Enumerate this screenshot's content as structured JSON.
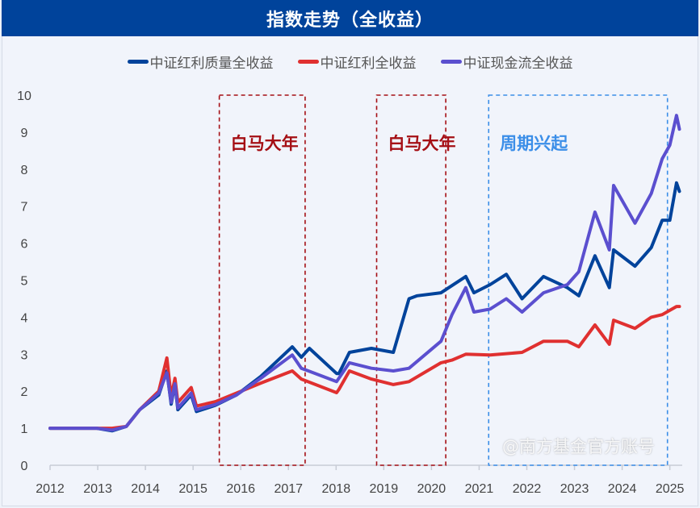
{
  "title": "指数走势（全收益）",
  "watermark": "@南方基金官方账号",
  "colors": {
    "title_bg": "#00439b",
    "background": "#f1f4fb",
    "era_red": "#a50f15",
    "era_blue": "#3b8ee8"
  },
  "chart_data": {
    "type": "line",
    "title": "指数走势（全收益）",
    "xlabel": "",
    "ylabel": "",
    "xlim": [
      2012,
      2025.2
    ],
    "ylim": [
      0,
      10
    ],
    "x_ticks": [
      "2012",
      "2013",
      "2014",
      "2015",
      "2016",
      "2017",
      "2018",
      "2019",
      "2020",
      "2021",
      "2022",
      "2023",
      "2024",
      "2025"
    ],
    "y_ticks": [
      "0",
      "1",
      "2",
      "3",
      "4",
      "5",
      "6",
      "7",
      "8",
      "9",
      "10"
    ],
    "grid": false,
    "legend": "top",
    "series": [
      {
        "name": "中证红利质量全收益",
        "color": "#00439b",
        "x": [
          2012.0,
          2012.98,
          2013.3,
          2013.6,
          2013.88,
          2014.28,
          2014.45,
          2014.54,
          2014.62,
          2014.68,
          2014.96,
          2015.07,
          2015.47,
          2015.91,
          2016.42,
          2017.08,
          2017.27,
          2017.44,
          2018.01,
          2018.06,
          2018.28,
          2018.74,
          2019.2,
          2019.53,
          2019.7,
          2020.2,
          2020.72,
          2020.89,
          2021.23,
          2021.57,
          2021.9,
          2022.35,
          2022.85,
          2023.09,
          2023.43,
          2023.73,
          2023.82,
          2024.27,
          2024.61,
          2024.84,
          2025.0,
          2025.14,
          2025.2
        ],
        "y": [
          1.0,
          1.0,
          0.93,
          1.05,
          1.5,
          1.9,
          2.55,
          1.65,
          2.2,
          1.5,
          1.9,
          1.45,
          1.62,
          1.9,
          2.4,
          3.2,
          2.92,
          3.16,
          2.48,
          2.48,
          3.05,
          3.16,
          3.05,
          4.5,
          4.58,
          4.66,
          5.1,
          4.66,
          4.88,
          5.16,
          4.5,
          5.1,
          4.8,
          4.58,
          5.66,
          4.8,
          5.82,
          5.38,
          5.88,
          6.62,
          6.62,
          7.63,
          7.4
        ]
      },
      {
        "name": "中证红利全收益",
        "color": "#e03030",
        "x": [
          2012.0,
          2012.98,
          2013.3,
          2013.6,
          2013.88,
          2014.28,
          2014.45,
          2014.54,
          2014.62,
          2014.68,
          2014.96,
          2015.07,
          2015.47,
          2015.91,
          2016.42,
          2017.08,
          2017.27,
          2018.01,
          2018.06,
          2018.28,
          2018.74,
          2019.2,
          2019.53,
          2020.2,
          2020.43,
          2020.72,
          2021.23,
          2021.9,
          2022.35,
          2022.85,
          2023.09,
          2023.43,
          2023.73,
          2023.82,
          2024.27,
          2024.61,
          2024.84,
          2025.14,
          2025.2
        ],
        "y": [
          1.0,
          1.0,
          1.0,
          1.05,
          1.5,
          2.0,
          2.9,
          1.85,
          2.35,
          1.7,
          2.1,
          1.6,
          1.72,
          1.95,
          2.22,
          2.55,
          2.33,
          1.96,
          2.05,
          2.55,
          2.33,
          2.18,
          2.26,
          2.77,
          2.84,
          3.0,
          2.98,
          3.05,
          3.35,
          3.35,
          3.2,
          3.79,
          3.27,
          3.92,
          3.7,
          4.0,
          4.07,
          4.29,
          4.29
        ]
      },
      {
        "name": "中证现金流全收益",
        "color": "#5b4fcf",
        "x": [
          2012.0,
          2012.98,
          2013.3,
          2013.6,
          2013.88,
          2014.28,
          2014.45,
          2014.54,
          2014.62,
          2014.68,
          2014.96,
          2015.07,
          2015.47,
          2015.91,
          2016.42,
          2017.08,
          2017.27,
          2018.01,
          2018.28,
          2018.74,
          2019.2,
          2019.53,
          2020.2,
          2020.43,
          2020.72,
          2020.89,
          2021.23,
          2021.57,
          2021.9,
          2022.35,
          2022.85,
          2023.09,
          2023.43,
          2023.73,
          2023.82,
          2024.27,
          2024.61,
          2024.84,
          2025.0,
          2025.14,
          2025.2
        ],
        "y": [
          1.0,
          1.0,
          0.95,
          1.05,
          1.5,
          1.95,
          2.5,
          1.7,
          2.2,
          1.55,
          1.95,
          1.5,
          1.64,
          1.9,
          2.35,
          2.98,
          2.62,
          2.26,
          2.77,
          2.62,
          2.55,
          2.62,
          3.35,
          4.07,
          4.8,
          4.14,
          4.22,
          4.5,
          4.14,
          4.66,
          4.88,
          5.23,
          6.84,
          5.82,
          7.56,
          6.54,
          7.34,
          8.28,
          8.65,
          9.45,
          9.08
        ]
      }
    ],
    "annotations": [
      {
        "label": "白马大年",
        "x_range": [
          2015.55,
          2017.35
        ],
        "y_range": [
          0,
          10
        ],
        "color": "#a50f15"
      },
      {
        "label": "白马大年",
        "x_range": [
          2018.85,
          2020.3
        ],
        "y_range": [
          0,
          10
        ],
        "color": "#a50f15"
      },
      {
        "label": "周期兴起",
        "x_range": [
          2021.2,
          2024.95
        ],
        "y_range": [
          0,
          10
        ],
        "color": "#3b8ee8"
      }
    ]
  }
}
